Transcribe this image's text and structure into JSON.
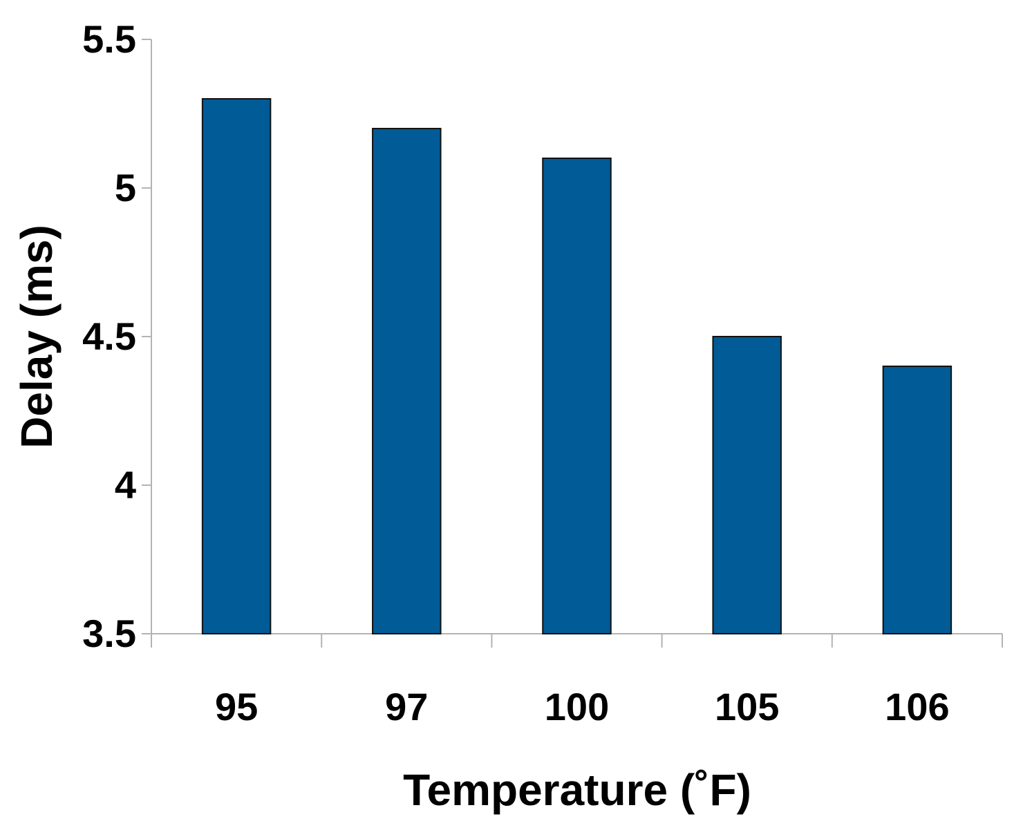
{
  "chart_data": {
    "type": "bar",
    "categories": [
      "95",
      "97",
      "100",
      "105",
      "106"
    ],
    "values": [
      5.3,
      5.2,
      5.1,
      4.5,
      4.4
    ],
    "title": "",
    "xlabel": "Temperature (˚F)",
    "ylabel": "Delay (ms)",
    "ylim": [
      3.5,
      5.5
    ],
    "yticks": [
      3.5,
      4,
      4.5,
      5,
      5.5
    ],
    "ytick_labels": [
      "3.5",
      "4",
      "4.5",
      "5",
      "5.5"
    ],
    "grid": false,
    "legend": "none",
    "colors": {
      "bar_fill": "#005b96",
      "bar_stroke": "#111111",
      "axis": "#b3b3b3",
      "text": "#000000"
    }
  }
}
